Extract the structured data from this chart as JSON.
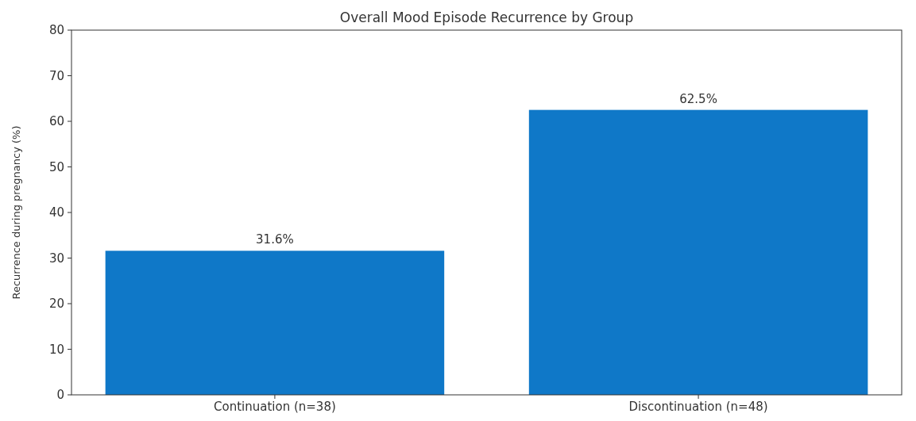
{
  "chart_data": {
    "type": "bar",
    "title": "Overall Mood Episode Recurrence by Group",
    "ylabel": "Recurrence during pregnancy (%)",
    "categories": [
      "Continuation (n=38)",
      "Discontinuation (n=48)"
    ],
    "values": [
      31.6,
      62.5
    ],
    "color": "#0f78c8",
    "value_labels": [
      "31.6%",
      "62.5%"
    ],
    "ylim": [
      0,
      80
    ],
    "yticks": [
      0,
      10,
      20,
      30,
      40,
      50,
      60,
      70,
      80
    ],
    "grid": false
  }
}
